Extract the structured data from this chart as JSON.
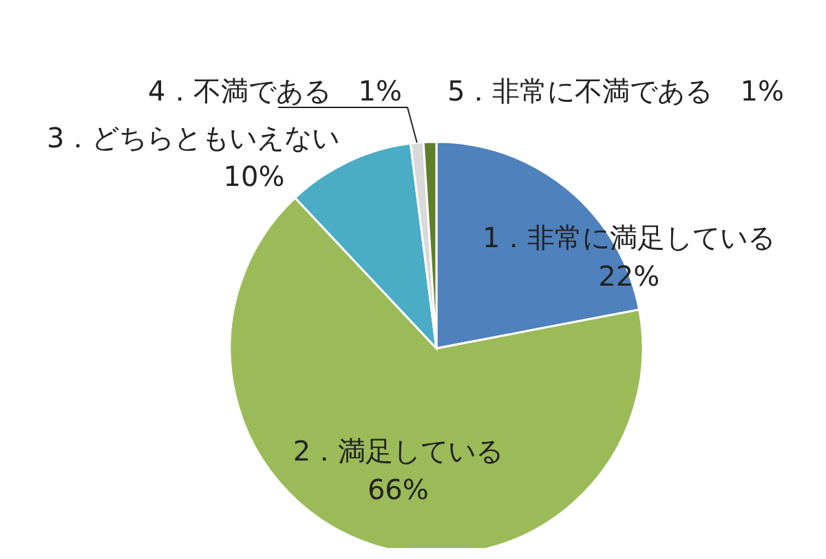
{
  "chart_data": {
    "type": "pie",
    "categories": [
      "1．非常に満足している",
      "2．満足している",
      "3．どちらともいえない",
      "4．不満である",
      "5．非常に不満である"
    ],
    "values": [
      22,
      66,
      10,
      1,
      1
    ],
    "value_labels": [
      "22%",
      "66%",
      "10%",
      "1%",
      "1%"
    ],
    "colors": [
      "#4f81bd",
      "#9bbb59",
      "#4bacc6",
      "#d9d9d9",
      "#5f7f2a"
    ],
    "legend": false
  }
}
